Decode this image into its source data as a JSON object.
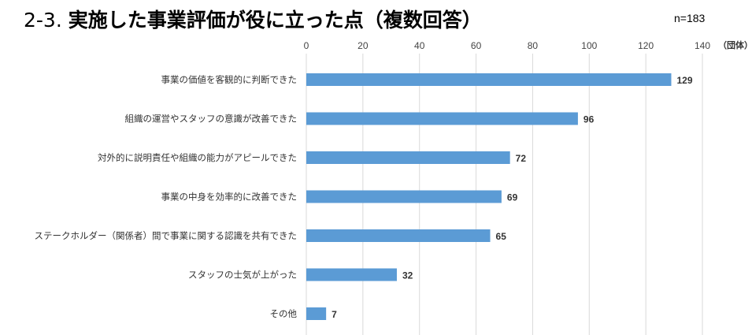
{
  "header": {
    "title_prefix": "2-3. ",
    "title_main": "実施した事業評価が役に立った点（複数回答）",
    "sample_size": "n=183"
  },
  "chart_data": {
    "type": "bar",
    "orientation": "horizontal",
    "unit": "（団体）",
    "xlim": [
      0,
      140
    ],
    "ticks": [
      0,
      20,
      40,
      60,
      80,
      100,
      120,
      140
    ],
    "tick_labels": [
      "0",
      "20",
      "40",
      "60",
      "80",
      "100",
      "120",
      "140"
    ],
    "categories": [
      "事業の価値を客観的に判断できた",
      "組織の運営やスタッフの意識が改善できた",
      "対外的に説明責任や組織の能力がアピールできた",
      "事業の中身を効率的に改善できた",
      "ステークホルダー（関係者）間で事業に関する認識を共有できた",
      "スタッフの士気が上がった",
      "その他"
    ],
    "values": [
      129,
      96,
      72,
      69,
      65,
      32,
      7
    ],
    "value_labels": [
      "129",
      "96",
      "72",
      "69",
      "65",
      "32",
      "7"
    ],
    "bar_color": "#5B9BD5",
    "grid_color": "#D9D9D9",
    "grid": true,
    "legend": false
  }
}
